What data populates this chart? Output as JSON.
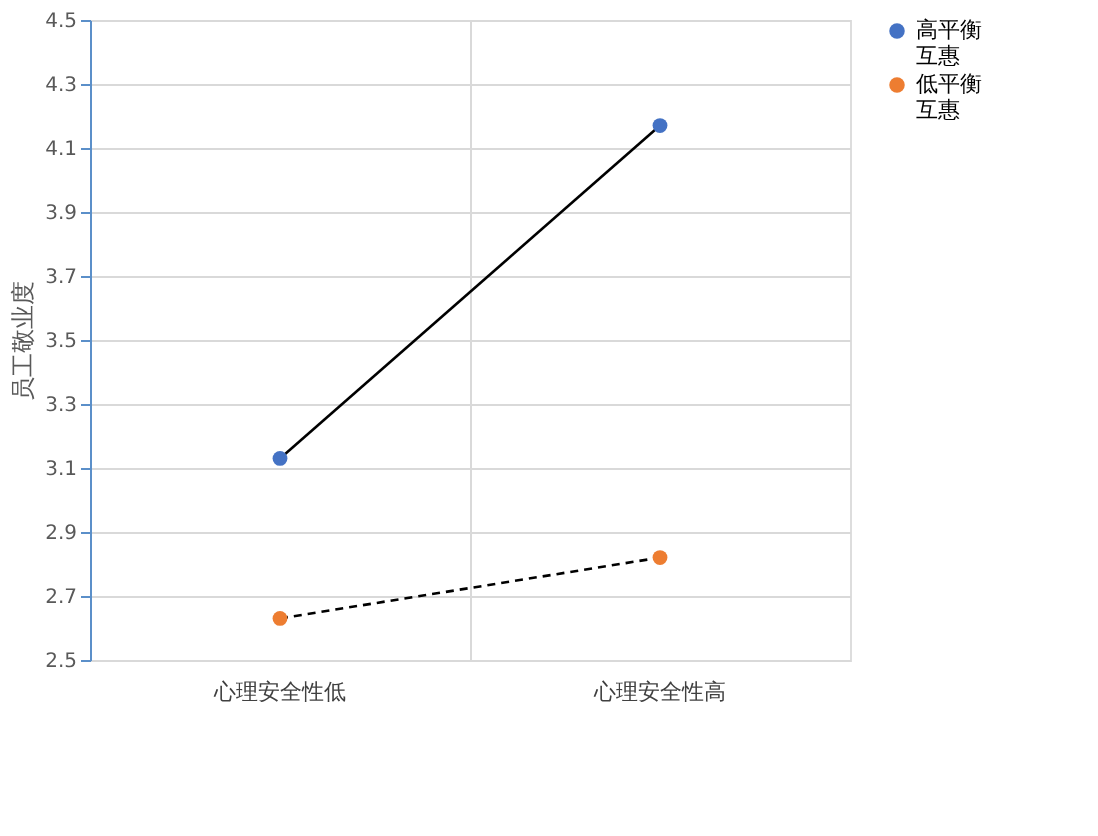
{
  "chart_data": {
    "type": "line",
    "ylabel": "员工敬业度",
    "categories": [
      "心理安全性低",
      "心理安全性高"
    ],
    "series": [
      {
        "name": "高平衡互惠",
        "color": "#4472c4",
        "values": [
          3.13,
          4.17
        ],
        "line_style": "solid"
      },
      {
        "name": "低平衡互惠",
        "color": "#ed7d31",
        "values": [
          2.63,
          2.82
        ],
        "line_style": "dashed"
      }
    ],
    "ylim": [
      2.5,
      4.5
    ],
    "yticks": [
      2.5,
      2.7,
      2.9,
      3.1,
      3.3,
      3.5,
      3.7,
      3.9,
      4.1,
      4.3,
      4.5
    ],
    "grid": true,
    "legend": "right",
    "marker": "circle"
  }
}
